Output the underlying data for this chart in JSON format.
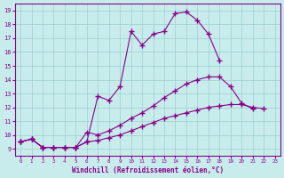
{
  "xlabel": "Windchill (Refroidissement éolien,°C)",
  "x_ticks": [
    0,
    1,
    2,
    3,
    4,
    5,
    6,
    7,
    8,
    9,
    10,
    11,
    12,
    13,
    14,
    15,
    16,
    17,
    18,
    19,
    20,
    21,
    22,
    23
  ],
  "ylim": [
    8.5,
    19.5
  ],
  "xlim": [
    -0.5,
    23.5
  ],
  "yticks": [
    9,
    10,
    11,
    12,
    13,
    14,
    15,
    16,
    17,
    18,
    19
  ],
  "bg_color": "#c8ecec",
  "line_color": "#880088",
  "grid_color": "#9ccfcf",
  "line1_y": [
    9.5,
    9.7,
    9.1,
    9.1,
    9.1,
    9.1,
    9.5,
    12.8,
    12.5,
    13.5,
    17.5,
    16.5,
    17.3,
    17.5,
    18.8,
    18.9,
    18.3,
    17.3,
    15.4,
    null,
    null,
    null,
    null,
    null
  ],
  "line2_y": [
    9.5,
    9.7,
    9.1,
    9.1,
    9.1,
    9.1,
    10.2,
    10.0,
    10.3,
    10.7,
    11.2,
    11.6,
    12.1,
    12.7,
    13.2,
    13.7,
    14.0,
    14.2,
    14.2,
    13.5,
    12.3,
    11.9,
    null,
    null
  ],
  "line3_y": [
    9.5,
    9.7,
    9.1,
    9.1,
    9.1,
    9.1,
    9.5,
    9.6,
    9.8,
    10.0,
    10.3,
    10.6,
    10.9,
    11.2,
    11.4,
    11.6,
    11.8,
    12.0,
    12.1,
    12.2,
    12.2,
    12.0,
    11.9,
    null
  ]
}
